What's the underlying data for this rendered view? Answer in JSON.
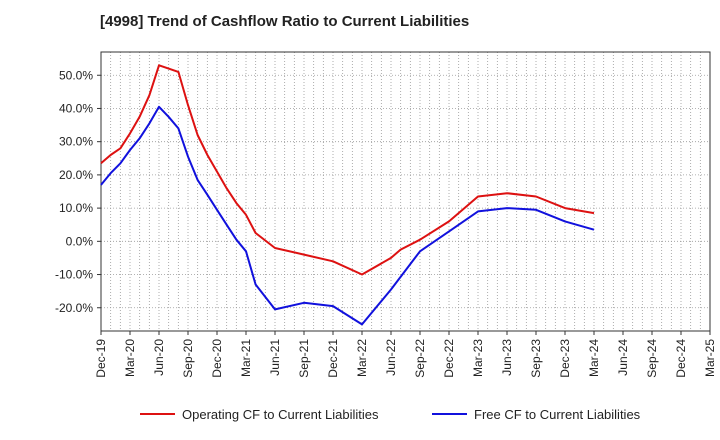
{
  "chart_data": {
    "type": "line",
    "title": "[4998]  Trend of Cashflow Ratio to Current Liabilities",
    "xlabel": "",
    "ylabel": "",
    "categories": [
      "Dec-19",
      "Mar-20",
      "Jun-20",
      "Sep-20",
      "Dec-20",
      "Mar-21",
      "Jun-21",
      "Sep-21",
      "Dec-21",
      "Mar-22",
      "Jun-22",
      "Sep-22",
      "Dec-22",
      "Mar-23",
      "Jun-23",
      "Sep-23",
      "Dec-23",
      "Mar-24",
      "Jun-24",
      "Sep-24",
      "Dec-24",
      "Mar-25"
    ],
    "yticks": [
      "-20.0%",
      "-10.0%",
      "0.0%",
      "10.0%",
      "20.0%",
      "30.0%",
      "40.0%",
      "50.0%"
    ],
    "ylim": [
      -27,
      57
    ],
    "y_unit": "%",
    "grid": true,
    "legend_position": "bottom",
    "series": [
      {
        "name": "Operating CF to Current Liabilities",
        "color": "#dd1111",
        "points": [
          [
            0,
            23.5
          ],
          [
            0.33,
            26.0
          ],
          [
            0.67,
            28.0
          ],
          [
            1,
            32.5
          ],
          [
            1.33,
            37.5
          ],
          [
            1.67,
            44.0
          ],
          [
            2,
            53.0
          ],
          [
            2.33,
            52.0
          ],
          [
            2.67,
            51.0
          ],
          [
            3,
            41.0
          ],
          [
            3.33,
            32.0
          ],
          [
            3.67,
            26.0
          ],
          [
            4,
            21.0
          ],
          [
            4.33,
            16.0
          ],
          [
            4.67,
            11.5
          ],
          [
            5,
            8.0
          ],
          [
            5.33,
            2.5
          ],
          [
            6,
            -2.0
          ],
          [
            7,
            -4.0
          ],
          [
            8,
            -6.0
          ],
          [
            9,
            -10.0
          ],
          [
            10,
            -5.0
          ],
          [
            10.33,
            -2.5
          ],
          [
            11,
            0.5
          ],
          [
            12,
            6.0
          ],
          [
            13,
            13.5
          ],
          [
            14,
            14.5
          ],
          [
            15,
            13.5
          ],
          [
            16,
            10.0
          ],
          [
            17,
            8.5
          ]
        ]
      },
      {
        "name": "Free CF to Current Liabilities",
        "color": "#1111dd",
        "points": [
          [
            0,
            17.0
          ],
          [
            0.33,
            20.5
          ],
          [
            0.67,
            23.5
          ],
          [
            1,
            27.5
          ],
          [
            1.33,
            31.0
          ],
          [
            1.67,
            35.5
          ],
          [
            2,
            40.5
          ],
          [
            2.33,
            37.5
          ],
          [
            2.67,
            34.0
          ],
          [
            3,
            25.5
          ],
          [
            3.33,
            18.5
          ],
          [
            3.67,
            14.0
          ],
          [
            4,
            9.5
          ],
          [
            4.33,
            5.0
          ],
          [
            4.67,
            0.5
          ],
          [
            5,
            -3.0
          ],
          [
            5.33,
            -13.0
          ],
          [
            6,
            -20.5
          ],
          [
            7,
            -18.5
          ],
          [
            8,
            -19.5
          ],
          [
            9,
            -25.0
          ],
          [
            10,
            -14.5
          ],
          [
            11,
            -3.0
          ],
          [
            12,
            3.0
          ],
          [
            13,
            9.0
          ],
          [
            14,
            10.0
          ],
          [
            15,
            9.5
          ],
          [
            16,
            6.0
          ],
          [
            17,
            3.5
          ]
        ]
      }
    ]
  }
}
